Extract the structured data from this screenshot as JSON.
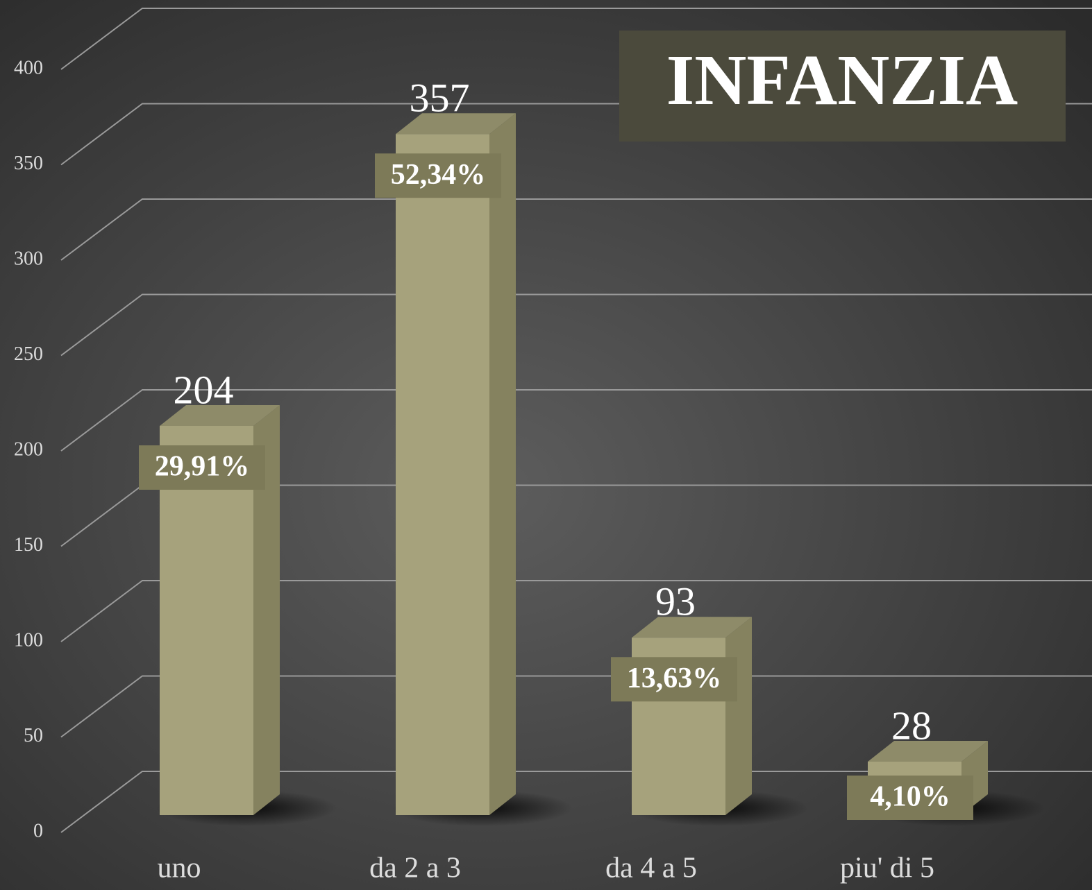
{
  "chart_data": {
    "type": "bar3d",
    "title": "INFANZIA",
    "categories": [
      "uno",
      "da 2 a 3",
      "da 4 a 5",
      "piu' di 5"
    ],
    "values": [
      204,
      357,
      93,
      28
    ],
    "percentages": [
      "29,91%",
      "52,34%",
      "13,63%",
      "4,10%"
    ],
    "color": "#a6a27c",
    "ylim": [
      0,
      400
    ],
    "yticks": [
      0,
      50,
      100,
      150,
      200,
      250,
      300,
      350,
      400
    ],
    "grid": true
  }
}
